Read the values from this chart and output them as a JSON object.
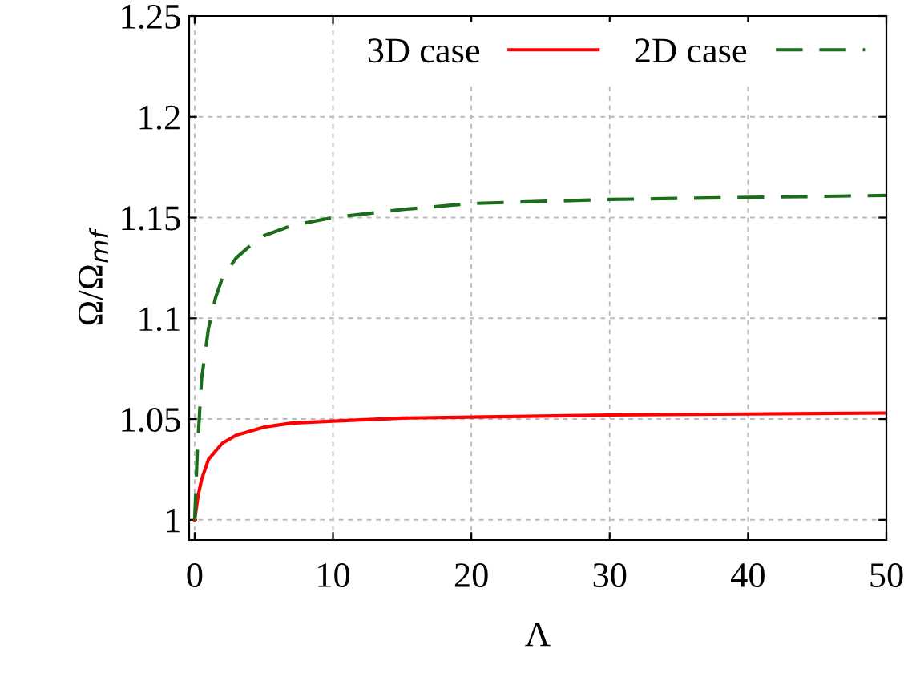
{
  "chart_data": {
    "type": "line",
    "xlabel": "Λ",
    "ylabel": "Ω/Ω$_{mf}$",
    "xlim": [
      -0.4,
      50
    ],
    "ylim": [
      0.99,
      1.25
    ],
    "xticks": [
      0,
      10,
      20,
      30,
      40,
      50
    ],
    "yticks": [
      1,
      1.05,
      1.1,
      1.15,
      1.2,
      1.25
    ],
    "grid": true,
    "legend": "top right",
    "series": [
      {
        "name": "3D case",
        "color": "#ff0000",
        "line_style": "solid",
        "x": [
          0,
          0.25,
          0.5,
          1,
          2,
          3,
          5,
          7,
          10,
          15,
          20,
          30,
          40,
          50
        ],
        "values": [
          1.0,
          1.012,
          1.02,
          1.03,
          1.038,
          1.042,
          1.046,
          1.048,
          1.049,
          1.0505,
          1.051,
          1.052,
          1.0525,
          1.053
        ]
      },
      {
        "name": "2D case",
        "color": "#1a6e1a",
        "line_style": "dashed",
        "x": [
          0,
          0.2,
          0.5,
          1,
          1.5,
          2,
          3,
          4,
          5,
          7,
          10,
          15,
          20,
          30,
          40,
          50
        ],
        "values": [
          1.0,
          1.035,
          1.07,
          1.095,
          1.11,
          1.12,
          1.13,
          1.136,
          1.141,
          1.146,
          1.15,
          1.154,
          1.157,
          1.159,
          1.16,
          1.161
        ]
      }
    ]
  }
}
